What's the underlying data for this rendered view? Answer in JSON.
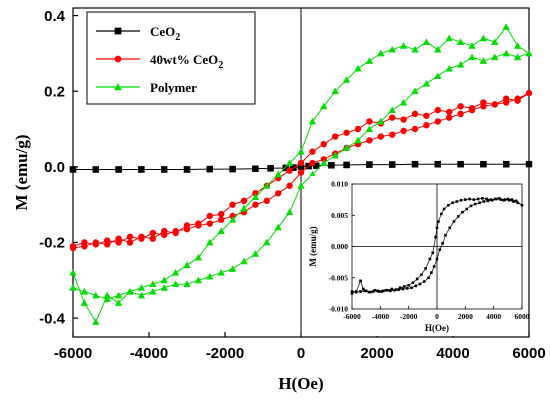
{
  "chart_data": [
    {
      "type": "line",
      "xlabel": "H(Oe)",
      "ylabel": "M (emu/g)",
      "xlim": [
        -6000,
        6000
      ],
      "ylim": [
        -0.45,
        0.42
      ],
      "xticks": [
        -6000,
        -4000,
        -2000,
        0,
        2000,
        4000,
        6000
      ],
      "xtick_labels": [
        "-6000",
        "-4000",
        "-2000",
        "0",
        "2000",
        "4000",
        "6000"
      ],
      "yticks": [
        -0.4,
        -0.2,
        0.0,
        0.2,
        0.4
      ],
      "ytick_labels": [
        "-0.4",
        "-0.2",
        "0.0",
        "0.2",
        "0.4"
      ],
      "legend_position": "top-left",
      "series": [
        {
          "name": "CeO2",
          "legend_label_main": "CeO",
          "legend_label_sub": "2",
          "legend_label_suffix": "",
          "color": "#000000",
          "marker": "square",
          "x": [
            -6000,
            -5400,
            -4800,
            -4200,
            -3600,
            -3000,
            -2400,
            -1800,
            -1200,
            -800,
            -400,
            -200,
            0,
            200,
            400,
            800,
            1200,
            1800,
            2400,
            3000,
            3600,
            4200,
            4800,
            5400,
            6000,
            5400,
            4800,
            4200,
            3600,
            3000,
            2400,
            1800,
            1200,
            800,
            400,
            200,
            0,
            -200,
            -400,
            -800,
            -1200,
            -1800,
            -2400,
            -3000,
            -3600,
            -4200,
            -4800,
            -5400,
            -6000
          ],
          "y": [
            -0.007,
            -0.007,
            -0.007,
            -0.007,
            -0.007,
            -0.007,
            -0.006,
            -0.006,
            -0.005,
            -0.004,
            -0.003,
            -0.002,
            0.0,
            0.002,
            0.003,
            0.004,
            0.005,
            0.006,
            0.006,
            0.007,
            0.007,
            0.007,
            0.007,
            0.007,
            0.007,
            0.007,
            0.007,
            0.007,
            0.007,
            0.007,
            0.006,
            0.006,
            0.005,
            0.004,
            0.003,
            0.002,
            0.0,
            -0.002,
            -0.003,
            -0.004,
            -0.005,
            -0.006,
            -0.006,
            -0.007,
            -0.007,
            -0.007,
            -0.007,
            -0.007,
            -0.007
          ]
        },
        {
          "name": "40wt% CeO2",
          "legend_label_main": "40wt% CeO",
          "legend_label_sub": "2",
          "legend_label_suffix": "",
          "color": "#ff0000",
          "marker": "circle",
          "x": [
            -6000,
            -5700,
            -5400,
            -5100,
            -4800,
            -4500,
            -4200,
            -3900,
            -3600,
            -3300,
            -3000,
            -2700,
            -2400,
            -2100,
            -1800,
            -1500,
            -1200,
            -900,
            -600,
            -300,
            0,
            300,
            600,
            900,
            1200,
            1500,
            1800,
            2100,
            2400,
            2700,
            3000,
            3300,
            3600,
            3900,
            4200,
            4500,
            4800,
            5100,
            5400,
            5700,
            6000,
            5700,
            5400,
            5100,
            4800,
            4500,
            4200,
            3900,
            3600,
            3300,
            3000,
            2700,
            2400,
            2100,
            1800,
            1500,
            1200,
            900,
            600,
            300,
            0,
            -300,
            -600,
            -900,
            -1200,
            -1500,
            -1800,
            -2100,
            -2400,
            -2700,
            -3000,
            -3300,
            -3600,
            -3900,
            -4200,
            -4500,
            -4800,
            -5100,
            -5400,
            -5700,
            -6000
          ],
          "y": [
            -0.215,
            -0.21,
            -0.2,
            -0.205,
            -0.19,
            -0.2,
            -0.185,
            -0.19,
            -0.17,
            -0.175,
            -0.155,
            -0.15,
            -0.13,
            -0.125,
            -0.1,
            -0.09,
            -0.07,
            -0.05,
            -0.03,
            -0.01,
            0.01,
            0.04,
            0.06,
            0.08,
            0.09,
            0.1,
            0.12,
            0.115,
            0.13,
            0.125,
            0.14,
            0.135,
            0.15,
            0.145,
            0.16,
            0.155,
            0.17,
            0.165,
            0.18,
            0.175,
            0.195,
            0.18,
            0.17,
            0.165,
            0.16,
            0.15,
            0.14,
            0.13,
            0.12,
            0.11,
            0.1,
            0.095,
            0.085,
            0.08,
            0.07,
            0.06,
            0.05,
            0.035,
            0.02,
            0.01,
            -0.015,
            -0.05,
            -0.07,
            -0.09,
            -0.1,
            -0.12,
            -0.13,
            -0.14,
            -0.15,
            -0.155,
            -0.165,
            -0.17,
            -0.18,
            -0.175,
            -0.19,
            -0.185,
            -0.2,
            -0.195,
            -0.205,
            -0.2,
            -0.21
          ]
        },
        {
          "name": "Polymer",
          "legend_label_main": "Polymer",
          "legend_label_sub": "",
          "legend_label_suffix": "",
          "color": "#00dd00",
          "marker": "triangle",
          "x": [
            -6000,
            -5700,
            -5400,
            -5100,
            -4800,
            -4500,
            -4200,
            -3900,
            -3600,
            -3300,
            -3000,
            -2700,
            -2400,
            -2100,
            -1800,
            -1500,
            -1200,
            -900,
            -600,
            -300,
            0,
            300,
            600,
            900,
            1200,
            1500,
            1800,
            2100,
            2400,
            2700,
            3000,
            3300,
            3600,
            3900,
            4200,
            4500,
            4800,
            5100,
            5400,
            5700,
            6000,
            5700,
            5400,
            5100,
            4800,
            4500,
            4200,
            3900,
            3600,
            3300,
            3000,
            2700,
            2400,
            2100,
            1800,
            1500,
            1200,
            900,
            600,
            300,
            0,
            -300,
            -600,
            -900,
            -1200,
            -1500,
            -1800,
            -2100,
            -2400,
            -2700,
            -3000,
            -3300,
            -3600,
            -3900,
            -4200,
            -4500,
            -4800,
            -5100,
            -5400,
            -5700,
            -6000
          ],
          "y": [
            -0.28,
            -0.36,
            -0.41,
            -0.34,
            -0.36,
            -0.33,
            -0.32,
            -0.31,
            -0.3,
            -0.28,
            -0.26,
            -0.24,
            -0.2,
            -0.17,
            -0.14,
            -0.11,
            -0.08,
            -0.05,
            -0.02,
            0.01,
            0.04,
            0.12,
            0.16,
            0.2,
            0.23,
            0.26,
            0.28,
            0.3,
            0.31,
            0.32,
            0.31,
            0.33,
            0.31,
            0.34,
            0.33,
            0.32,
            0.34,
            0.33,
            0.37,
            0.32,
            0.3,
            0.29,
            0.3,
            0.29,
            0.28,
            0.29,
            0.27,
            0.26,
            0.24,
            0.22,
            0.2,
            0.17,
            0.15,
            0.12,
            0.1,
            0.07,
            0.05,
            0.03,
            0.01,
            -0.02,
            -0.05,
            -0.12,
            -0.16,
            -0.2,
            -0.23,
            -0.25,
            -0.27,
            -0.28,
            -0.29,
            -0.3,
            -0.31,
            -0.31,
            -0.32,
            -0.33,
            -0.34,
            -0.33,
            -0.34,
            -0.35,
            -0.34,
            -0.33,
            -0.32
          ]
        }
      ]
    },
    {
      "type": "line",
      "xlabel": "H(Oe)",
      "ylabel": "M (emu/g)",
      "xlim": [
        -6000,
        6000
      ],
      "ylim": [
        -0.01,
        0.01
      ],
      "xticks": [
        -6000,
        -4000,
        -2000,
        0,
        2000,
        4000,
        6000
      ],
      "xtick_labels": [
        "-6000",
        "-4000",
        "-2000",
        "0",
        "2000",
        "4000",
        "6000"
      ],
      "yticks": [
        -0.01,
        -0.005,
        0.0,
        0.005,
        0.01
      ],
      "ytick_labels": [
        "-0.010",
        "-0.005",
        "0.000",
        "0.005",
        "0.010"
      ],
      "series": [
        {
          "color": "#000000",
          "marker": "square",
          "x": [
            -6000,
            -5700,
            -5400,
            -5200,
            -5000,
            -4700,
            -4400,
            -4100,
            -3800,
            -3500,
            -3200,
            -2900,
            -2600,
            -2300,
            -2000,
            -1700,
            -1400,
            -1100,
            -800,
            -500,
            -300,
            -100,
            0,
            100,
            300,
            500,
            800,
            1100,
            1400,
            1700,
            2000,
            2300,
            2600,
            2900,
            3200,
            3500,
            3800,
            4100,
            4400,
            4700,
            5000,
            5300,
            5600,
            6000,
            5700,
            5400,
            5100,
            4800,
            4500,
            4200,
            3900,
            3600,
            3300,
            3000,
            2700,
            2400,
            2100,
            1800,
            1500,
            1200,
            900,
            600,
            400,
            200,
            0,
            -200,
            -400,
            -600,
            -900,
            -1200,
            -1500,
            -1800,
            -2100,
            -2400,
            -2700,
            -3000,
            -3300,
            -3600,
            -3900,
            -4200,
            -4500,
            -4800,
            -5100,
            -5400,
            -5700,
            -6000
          ],
          "y": [
            -0.0075,
            -0.0072,
            -0.0055,
            -0.0068,
            -0.0071,
            -0.0073,
            -0.007,
            -0.0072,
            -0.0071,
            -0.007,
            -0.0068,
            -0.0069,
            -0.0066,
            -0.0064,
            -0.0062,
            -0.0058,
            -0.0052,
            -0.0045,
            -0.0035,
            -0.002,
            -0.001,
            0.0015,
            0.003,
            0.004,
            0.0052,
            0.006,
            0.0066,
            0.007,
            0.0072,
            0.0074,
            0.0075,
            0.0076,
            0.0075,
            0.0076,
            0.0077,
            0.0076,
            0.0075,
            0.0076,
            0.0077,
            0.0074,
            0.0076,
            0.0075,
            0.0073,
            0.0066,
            0.007,
            0.0072,
            0.0074,
            0.0075,
            0.0075,
            0.0076,
            0.0074,
            0.0073,
            0.0072,
            0.007,
            0.0068,
            0.0065,
            0.006,
            0.0055,
            0.0048,
            0.004,
            0.003,
            0.0018,
            0.0005,
            -0.0005,
            -0.002,
            -0.0032,
            -0.0042,
            -0.005,
            -0.0056,
            -0.006,
            -0.0063,
            -0.0066,
            -0.0067,
            -0.0068,
            -0.0069,
            -0.007,
            -0.0071,
            -0.007,
            -0.0072,
            -0.0071,
            -0.0072,
            -0.0073,
            -0.0071,
            -0.0072,
            -0.0073,
            -0.0072
          ]
        }
      ]
    }
  ]
}
